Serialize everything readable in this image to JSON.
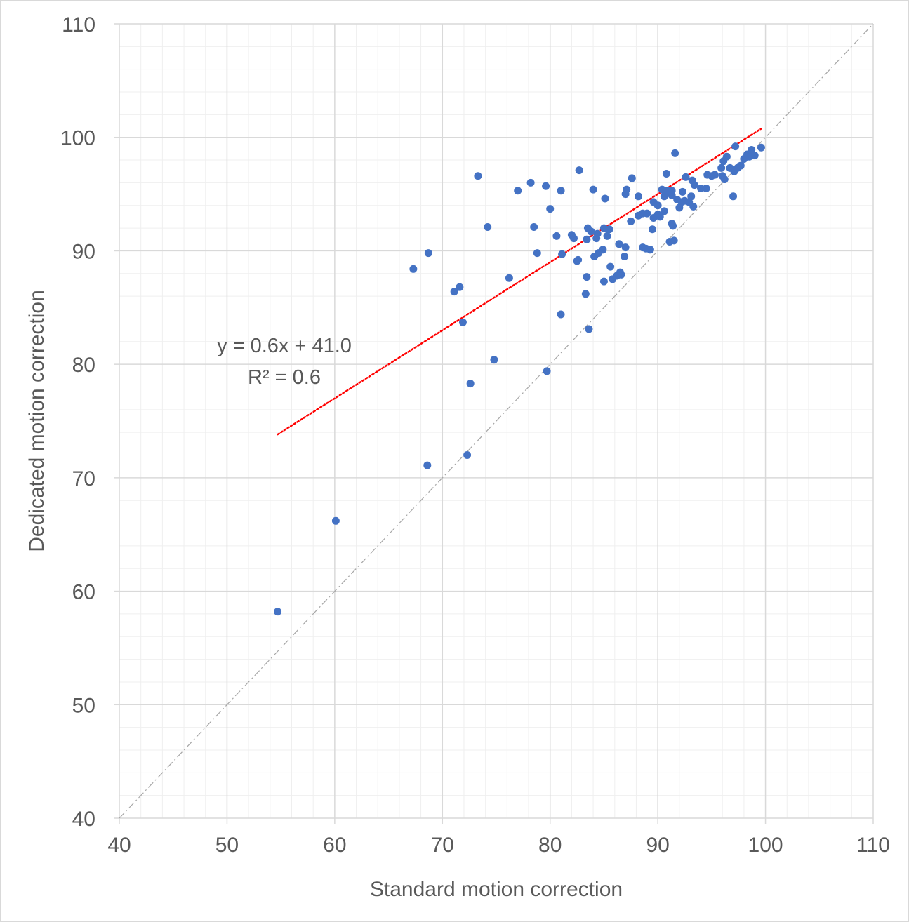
{
  "chart_data": {
    "type": "scatter",
    "xlabel": "Standard motion correction",
    "ylabel": "Dedicated motion correction",
    "xlim": [
      40,
      110
    ],
    "ylim": [
      40,
      110
    ],
    "x_ticks": [
      "40",
      "50",
      "60",
      "70",
      "80",
      "90",
      "100",
      "110"
    ],
    "y_ticks": [
      "40",
      "50",
      "60",
      "70",
      "80",
      "90",
      "100",
      "110"
    ],
    "grid": "major and minor",
    "point_color": "#4472C4",
    "trendline": {
      "type": "linear",
      "slope": 0.6,
      "intercept": 41.0,
      "x_range": [
        54.7,
        99.6
      ],
      "color": "#FF0000",
      "style": "dotted"
    },
    "identity_line": {
      "from": [
        40,
        40
      ],
      "to": [
        110,
        110
      ],
      "color": "#A6A6A6",
      "style": "dash-dot"
    },
    "equation_line1": "y = 0.6x + 41.0",
    "equation_line2": "R² = 0.6",
    "points": [
      [
        54.7,
        58.2
      ],
      [
        60.1,
        66.2
      ],
      [
        68.6,
        71.1
      ],
      [
        72.3,
        72.0
      ],
      [
        67.3,
        88.4
      ],
      [
        68.7,
        89.8
      ],
      [
        71.1,
        86.4
      ],
      [
        71.6,
        86.8
      ],
      [
        71.9,
        83.7
      ],
      [
        72.6,
        78.3
      ],
      [
        73.3,
        96.6
      ],
      [
        74.2,
        92.1
      ],
      [
        74.8,
        80.4
      ],
      [
        76.2,
        87.6
      ],
      [
        77.0,
        95.3
      ],
      [
        78.2,
        96.0
      ],
      [
        78.5,
        92.1
      ],
      [
        78.8,
        89.8
      ],
      [
        79.6,
        95.7
      ],
      [
        79.7,
        79.4
      ],
      [
        80.0,
        93.7
      ],
      [
        80.6,
        91.3
      ],
      [
        81.0,
        95.3
      ],
      [
        81.0,
        84.4
      ],
      [
        81.1,
        89.7
      ],
      [
        82.0,
        91.4
      ],
      [
        82.2,
        91.1
      ],
      [
        82.5,
        89.1
      ],
      [
        82.6,
        89.2
      ],
      [
        82.7,
        97.1
      ],
      [
        83.3,
        86.2
      ],
      [
        83.4,
        87.7
      ],
      [
        83.4,
        91.0
      ],
      [
        83.5,
        92.0
      ],
      [
        83.6,
        83.1
      ],
      [
        83.8,
        91.7
      ],
      [
        84.0,
        95.4
      ],
      [
        84.1,
        89.5
      ],
      [
        84.3,
        91.1
      ],
      [
        84.4,
        91.5
      ],
      [
        84.5,
        89.8
      ],
      [
        84.9,
        90.1
      ],
      [
        85.0,
        87.3
      ],
      [
        85.0,
        92.0
      ],
      [
        85.1,
        94.6
      ],
      [
        85.3,
        91.3
      ],
      [
        85.5,
        91.9
      ],
      [
        85.6,
        88.6
      ],
      [
        85.8,
        87.5
      ],
      [
        86.2,
        87.8
      ],
      [
        86.4,
        90.6
      ],
      [
        86.5,
        88.1
      ],
      [
        86.6,
        87.9
      ],
      [
        86.9,
        89.5
      ],
      [
        87.0,
        95.0
      ],
      [
        87.1,
        95.4
      ],
      [
        87.0,
        90.3
      ],
      [
        87.5,
        92.6
      ],
      [
        87.6,
        96.4
      ],
      [
        88.2,
        94.8
      ],
      [
        88.2,
        93.1
      ],
      [
        88.6,
        93.3
      ],
      [
        88.6,
        90.3
      ],
      [
        88.9,
        90.2
      ],
      [
        89.0,
        93.3
      ],
      [
        89.3,
        90.1
      ],
      [
        89.5,
        91.9
      ],
      [
        89.6,
        92.9
      ],
      [
        89.6,
        94.3
      ],
      [
        90.0,
        94.0
      ],
      [
        90.0,
        93.2
      ],
      [
        90.2,
        93.0
      ],
      [
        90.4,
        95.4
      ],
      [
        90.6,
        93.5
      ],
      [
        90.6,
        94.8
      ],
      [
        90.8,
        96.8
      ],
      [
        90.9,
        95.3
      ],
      [
        91.1,
        90.8
      ],
      [
        91.2,
        95.3
      ],
      [
        91.3,
        92.4
      ],
      [
        91.3,
        95.3
      ],
      [
        91.3,
        94.9
      ],
      [
        91.4,
        92.2
      ],
      [
        91.5,
        90.9
      ],
      [
        91.6,
        98.6
      ],
      [
        91.8,
        94.5
      ],
      [
        92.0,
        93.8
      ],
      [
        92.2,
        94.3
      ],
      [
        92.3,
        95.2
      ],
      [
        92.5,
        94.4
      ],
      [
        92.6,
        96.5
      ],
      [
        92.9,
        94.3
      ],
      [
        93.1,
        94.8
      ],
      [
        93.2,
        96.2
      ],
      [
        93.3,
        93.9
      ],
      [
        93.4,
        95.8
      ],
      [
        94.0,
        95.5
      ],
      [
        94.5,
        95.5
      ],
      [
        94.6,
        96.7
      ],
      [
        95.0,
        96.6
      ],
      [
        95.3,
        96.7
      ],
      [
        95.9,
        97.3
      ],
      [
        96.0,
        96.6
      ],
      [
        96.1,
        97.9
      ],
      [
        96.2,
        96.3
      ],
      [
        96.4,
        98.3
      ],
      [
        96.7,
        97.3
      ],
      [
        97.0,
        94.8
      ],
      [
        97.1,
        97.0
      ],
      [
        97.2,
        99.2
      ],
      [
        97.4,
        97.3
      ],
      [
        97.7,
        97.5
      ],
      [
        98.0,
        98.1
      ],
      [
        98.3,
        98.5
      ],
      [
        98.5,
        98.3
      ],
      [
        98.7,
        98.9
      ],
      [
        99.0,
        98.4
      ],
      [
        99.6,
        99.1
      ]
    ]
  }
}
